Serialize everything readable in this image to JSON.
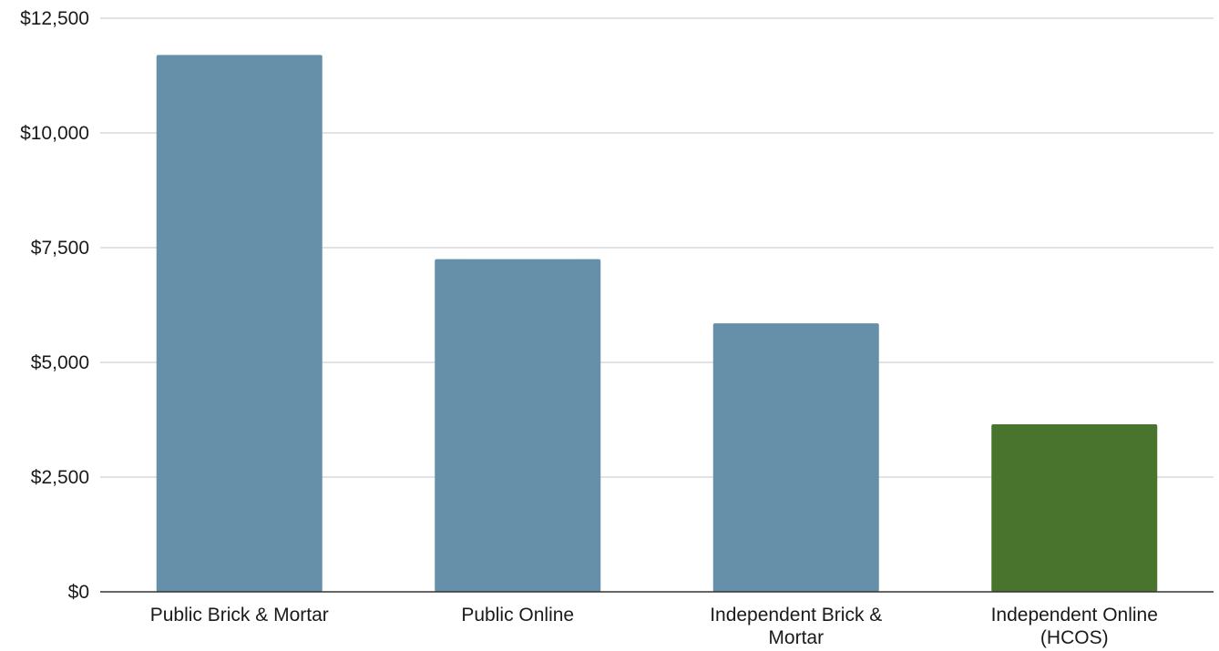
{
  "chart_data": {
    "type": "bar",
    "categories": [
      [
        "Public Brick & Mortar"
      ],
      [
        "Public Online"
      ],
      [
        "Independent Brick &",
        "Mortar"
      ],
      [
        "Independent Online",
        "(HCOS)"
      ]
    ],
    "values": [
      11700,
      7250,
      5850,
      3650
    ],
    "bar_colors": [
      "#6690aa",
      "#6690aa",
      "#6690aa",
      "#48742d"
    ],
    "ylim": [
      0,
      12500
    ],
    "yticks": [
      0,
      2500,
      5000,
      7500,
      10000,
      12500
    ],
    "ytick_labels": [
      "$0",
      "$2,500",
      "$5,000",
      "$7,500",
      "$10,000",
      "$12,500"
    ],
    "grid": true,
    "gridline_color": "#d0d0d5",
    "axis_color": "#333333",
    "title": "",
    "xlabel": "",
    "ylabel": ""
  }
}
